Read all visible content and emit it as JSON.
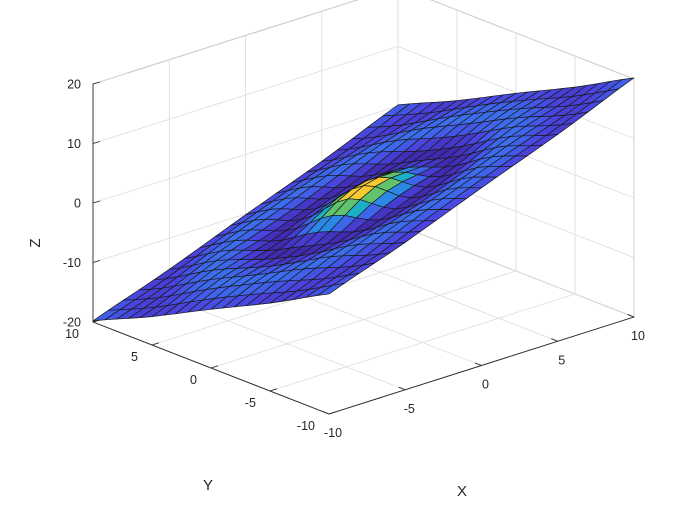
{
  "chart_data": {
    "type": "surface",
    "xlabel": "X",
    "ylabel": "Y",
    "zlabel": "Z",
    "xlim": [
      -10,
      10
    ],
    "ylim": [
      -10,
      10
    ],
    "zlim": [
      -20,
      20
    ],
    "x_ticks": [
      -10,
      -5,
      0,
      5,
      10
    ],
    "y_ticks": [
      -10,
      -5,
      0,
      5,
      10
    ],
    "z_ticks": [
      -20,
      -10,
      0,
      10,
      20
    ],
    "grid": true,
    "colormap": "parula",
    "grid_size": 21,
    "surface": "plane z = x - y plus a centered ripple peak (colormap by central ripple)",
    "colormap_stops": [
      "#3e26a8",
      "#4a44e0",
      "#3a73f0",
      "#1aa3d9",
      "#23bfb0",
      "#86c544",
      "#f7c437",
      "#f9fb0e"
    ]
  }
}
